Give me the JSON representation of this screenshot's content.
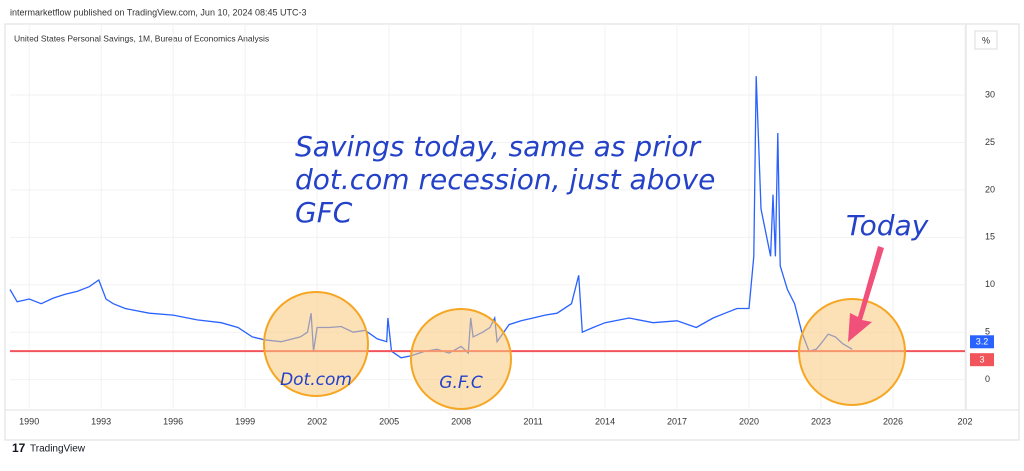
{
  "header": "intermarketflow published on TradingView.com, Jun 10, 2024 08:45 UTC-3",
  "footer": "TradingView",
  "chart_data": {
    "type": "line",
    "title": "United States Personal Savings, 1M, Bureau of Economics Analysis",
    "unit_label": "%",
    "x": [
      1989.2,
      1989.5,
      1990,
      1990.5,
      1991,
      1991.5,
      1992,
      1992.5,
      1992.9,
      1993.2,
      1993.5,
      1994,
      1995,
      1996,
      1997,
      1998,
      1998.7,
      1999.3,
      1999.8,
      2000.5,
      2001.3,
      2001.6,
      2001.75,
      2001.85,
      2002,
      2002.5,
      2003,
      2003.5,
      2004,
      2004.5,
      2004.9,
      2004.95,
      2005.1,
      2005.5,
      2005.9,
      2006.5,
      2007,
      2007.5,
      2008,
      2008.3,
      2008.4,
      2008.5,
      2008.9,
      2009.2,
      2009.4,
      2009.5,
      2010,
      2010.5,
      2011,
      2011.5,
      2012,
      2012.6,
      2012.9,
      2013.05,
      2013.5,
      2014,
      2015,
      2016,
      2017,
      2017.8,
      2018.5,
      2019,
      2019.5,
      2020,
      2020.2,
      2020.3,
      2020.5,
      2020.9,
      2021,
      2021.1,
      2021.2,
      2021.3,
      2021.6,
      2021.9,
      2022.2,
      2022.5,
      2022.8,
      2023,
      2023.3,
      2023.6,
      2023.9,
      2024.3
    ],
    "series": [
      {
        "name": "United States Personal Savings",
        "color": "#2962ff",
        "values": [
          9.5,
          8.2,
          8.5,
          8.0,
          8.6,
          9.0,
          9.3,
          9.8,
          10.5,
          8.5,
          8.0,
          7.5,
          7.0,
          6.8,
          6.3,
          6.0,
          5.5,
          4.5,
          4.2,
          4.0,
          4.5,
          5.0,
          7.0,
          3.0,
          5.5,
          5.5,
          5.6,
          5.0,
          5.2,
          4.3,
          4.0,
          6.5,
          3.0,
          2.3,
          2.5,
          3.0,
          3.2,
          2.8,
          3.5,
          2.8,
          6.5,
          4.5,
          5.0,
          5.5,
          6.5,
          4.0,
          5.8,
          6.2,
          6.5,
          6.8,
          7.0,
          8.0,
          11.0,
          5.0,
          5.5,
          6.0,
          6.5,
          6.0,
          6.2,
          5.5,
          6.5,
          7.0,
          7.5,
          7.5,
          13,
          32,
          18,
          13,
          19.5,
          13,
          26,
          12,
          9.5,
          8,
          5,
          3.0,
          3.2,
          3.8,
          4.8,
          4.5,
          3.8,
          3.2
        ]
      }
    ],
    "last_value": "3.2",
    "reference_line": {
      "value": 3,
      "color": "#f2545b"
    },
    "xlim": [
      1989.2,
      2029
    ],
    "xticks": [
      1990,
      1993,
      1996,
      1999,
      2002,
      2005,
      2008,
      2011,
      2014,
      2017,
      2020,
      2023,
      2026,
      {
        "value": 2029,
        "label": "202"
      }
    ],
    "ylim": [
      -3.2,
      35.8
    ],
    "yticks": [
      0,
      5,
      10,
      15,
      20,
      25,
      30
    ],
    "annotations": {
      "main": [
        "Savings today, same as prior",
        "dot.com recession, just above",
        "GFC"
      ],
      "today": "Today",
      "dotcom": "Dot.com",
      "gfc": "G.F.C"
    }
  }
}
